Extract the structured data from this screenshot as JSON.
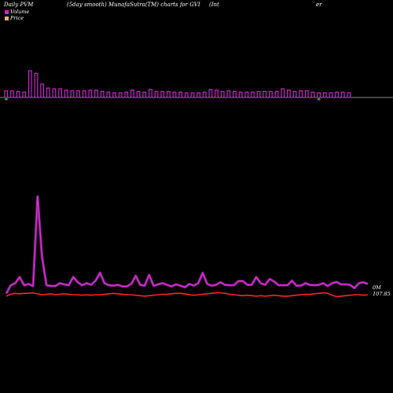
{
  "header": {
    "left": "Daily PVM",
    "center": "(5day smooth) MunafaSutra(TM) charts for GVI",
    "right_a": "(Int",
    "right_b": "er"
  },
  "legend": {
    "volume_label": "Volume",
    "price_label": "Price"
  },
  "colors": {
    "background": "#000000",
    "volume_bar": "#cc22cc",
    "volume_bar_down": "#22aa22",
    "pvm_line": "#dd33dd",
    "price_line": "#ff2222",
    "axis": "#bbbbbb"
  },
  "chart_data": {
    "type": "bar+line",
    "grid": false,
    "volume_bars": [
      1.0,
      1.0,
      0.9,
      0.8,
      4.0,
      3.6,
      2.0,
      1.4,
      1.3,
      1.3,
      1.1,
      1.0,
      1.0,
      1.0,
      1.1,
      1.1,
      0.9,
      0.8,
      0.7,
      0.7,
      0.8,
      1.1,
      0.9,
      0.8,
      1.2,
      0.9,
      0.9,
      0.9,
      0.8,
      0.8,
      0.7,
      0.7,
      0.7,
      0.8,
      1.2,
      1.1,
      0.9,
      1.0,
      0.9,
      0.8,
      0.8,
      0.8,
      0.9,
      0.9,
      0.9,
      0.9,
      1.3,
      1.1,
      0.9,
      1.0,
      1.0,
      0.8,
      0.7,
      0.7,
      0.7,
      0.8,
      0.8,
      0.7
    ],
    "pvm": [
      0.5,
      2.5,
      3.0,
      4.5,
      2.5,
      2.8,
      2.3,
      24.0,
      9.5,
      2.5,
      2.3,
      2.3,
      3.0,
      2.7,
      2.5,
      4.5,
      3.2,
      2.5,
      3.0,
      2.6,
      3.6,
      5.5,
      3.0,
      2.5,
      2.4,
      2.6,
      2.2,
      2.2,
      2.8,
      4.8,
      2.6,
      2.4,
      5.0,
      2.4,
      2.7,
      3.0,
      2.6,
      2.2,
      2.7,
      2.4,
      2.0,
      2.8,
      2.4,
      3.0,
      5.5,
      2.8,
      2.4,
      2.6,
      3.2,
      2.6,
      2.5,
      2.5,
      3.5,
      3.5,
      2.6,
      2.6,
      4.5,
      3.0,
      2.6,
      4.0,
      3.4,
      2.5,
      2.5,
      2.5,
      3.6,
      2.4,
      2.4,
      3.0,
      2.6,
      2.5,
      2.6,
      3.0,
      2.3,
      3.0,
      3.3,
      2.7,
      2.7,
      2.6,
      1.8,
      3.0,
      3.2,
      2.8
    ],
    "price": [
      107.2,
      107.6,
      107.8,
      107.7,
      107.8,
      107.8,
      107.9,
      107.7,
      107.5,
      107.6,
      107.7,
      107.5,
      107.6,
      107.7,
      107.6,
      107.5,
      107.5,
      107.4,
      107.5,
      107.4,
      107.5,
      107.5,
      107.6,
      107.7,
      107.8,
      107.7,
      107.6,
      107.5,
      107.5,
      107.4,
      107.3,
      107.2,
      107.3,
      107.4,
      107.5,
      107.6,
      107.6,
      107.7,
      107.8,
      107.8,
      107.7,
      107.5,
      107.4,
      107.5,
      107.6,
      107.7,
      107.8,
      107.9,
      107.9,
      107.8,
      107.6,
      107.5,
      107.4,
      107.3,
      107.4,
      107.3,
      107.2,
      107.3,
      107.2,
      107.3,
      107.4,
      107.3,
      107.2,
      107.2,
      107.3,
      107.4,
      107.5,
      107.6,
      107.6,
      107.7,
      107.8,
      107.9,
      107.8,
      107.4,
      107.1,
      107.2,
      107.3,
      107.4,
      107.5,
      107.5,
      107.4,
      107.5
    ],
    "price_last_label": "107.85",
    "pvm_last_label": "0M"
  }
}
